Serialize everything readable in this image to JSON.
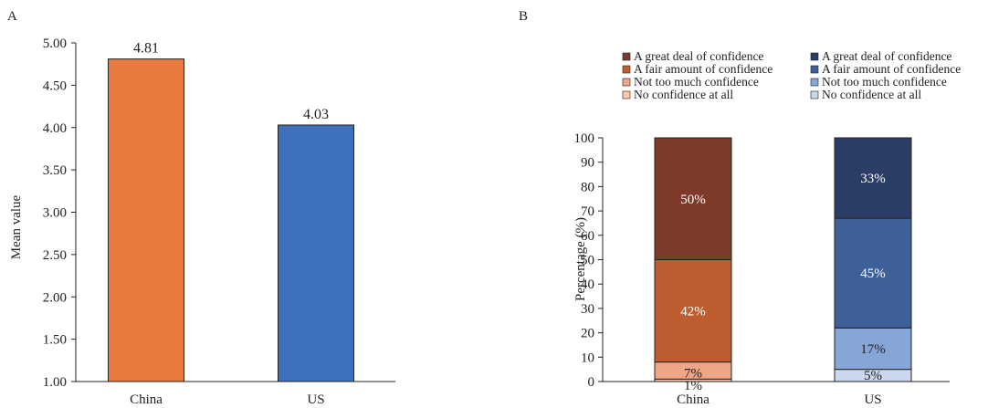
{
  "chart_data": [
    {
      "type": "bar",
      "panel_label": "A",
      "categories": [
        "China",
        "US"
      ],
      "values": [
        4.81,
        4.03
      ],
      "data_labels": [
        "4.81",
        "4.03"
      ],
      "colors": [
        "#E8793F",
        "#3F70BC"
      ],
      "ylabel": "Mean value",
      "ylim": [
        1.0,
        5.0
      ],
      "yticks": [
        "1.00",
        "1.50",
        "2.00",
        "2.50",
        "3.00",
        "3.50",
        "4.00",
        "4.50",
        "5.00"
      ],
      "grid": false
    },
    {
      "type": "bar",
      "stacked": true,
      "panel_label": "B",
      "categories": [
        "China",
        "US"
      ],
      "ylabel": "Percentage (%)",
      "ylim": [
        0,
        100
      ],
      "yticks": [
        "0",
        "10",
        "20",
        "30",
        "40",
        "50",
        "60",
        "70",
        "80",
        "90",
        "100"
      ],
      "grid": false,
      "legend_position": "top",
      "stacks": [
        {
          "category": "China",
          "segments": [
            {
              "name": "No confidence at all",
              "value": 1,
              "label": "1%",
              "color": "#F6CBB0"
            },
            {
              "name": "Not too much confidence",
              "value": 7,
              "label": "7%",
              "color": "#EEA686"
            },
            {
              "name": "A fair amount of confidence",
              "value": 42,
              "label": "42%",
              "color": "#BE5E30"
            },
            {
              "name": "A great deal of confidence",
              "value": 50,
              "label": "50%",
              "color": "#7D3A28"
            }
          ]
        },
        {
          "category": "US",
          "segments": [
            {
              "name": "No confidence at all",
              "value": 5,
              "label": "5%",
              "color": "#CAD7EE"
            },
            {
              "name": "Not too much confidence",
              "value": 17,
              "label": "17%",
              "color": "#86A6D8"
            },
            {
              "name": "A fair amount of confidence",
              "value": 45,
              "label": "45%",
              "color": "#3D6098"
            },
            {
              "name": "A great deal of confidence",
              "value": 33,
              "label": "33%",
              "color": "#2B3C67"
            }
          ]
        }
      ],
      "legend": [
        {
          "name": "A great deal of confidence",
          "color": "#7D3A28"
        },
        {
          "name": "A great deal of confidence",
          "color": "#2B3C67"
        },
        {
          "name": "A fair amount of confidence",
          "color": "#BE5E30"
        },
        {
          "name": "A fair amount of confidence",
          "color": "#3D6098"
        },
        {
          "name": "Not too much confidence",
          "color": "#EEA686"
        },
        {
          "name": "Not too much confidence",
          "color": "#86A6D8"
        },
        {
          "name": "No confidence at all",
          "color": "#F6CBB0"
        },
        {
          "name": "No confidence at all",
          "color": "#CAD7EE"
        }
      ]
    }
  ]
}
